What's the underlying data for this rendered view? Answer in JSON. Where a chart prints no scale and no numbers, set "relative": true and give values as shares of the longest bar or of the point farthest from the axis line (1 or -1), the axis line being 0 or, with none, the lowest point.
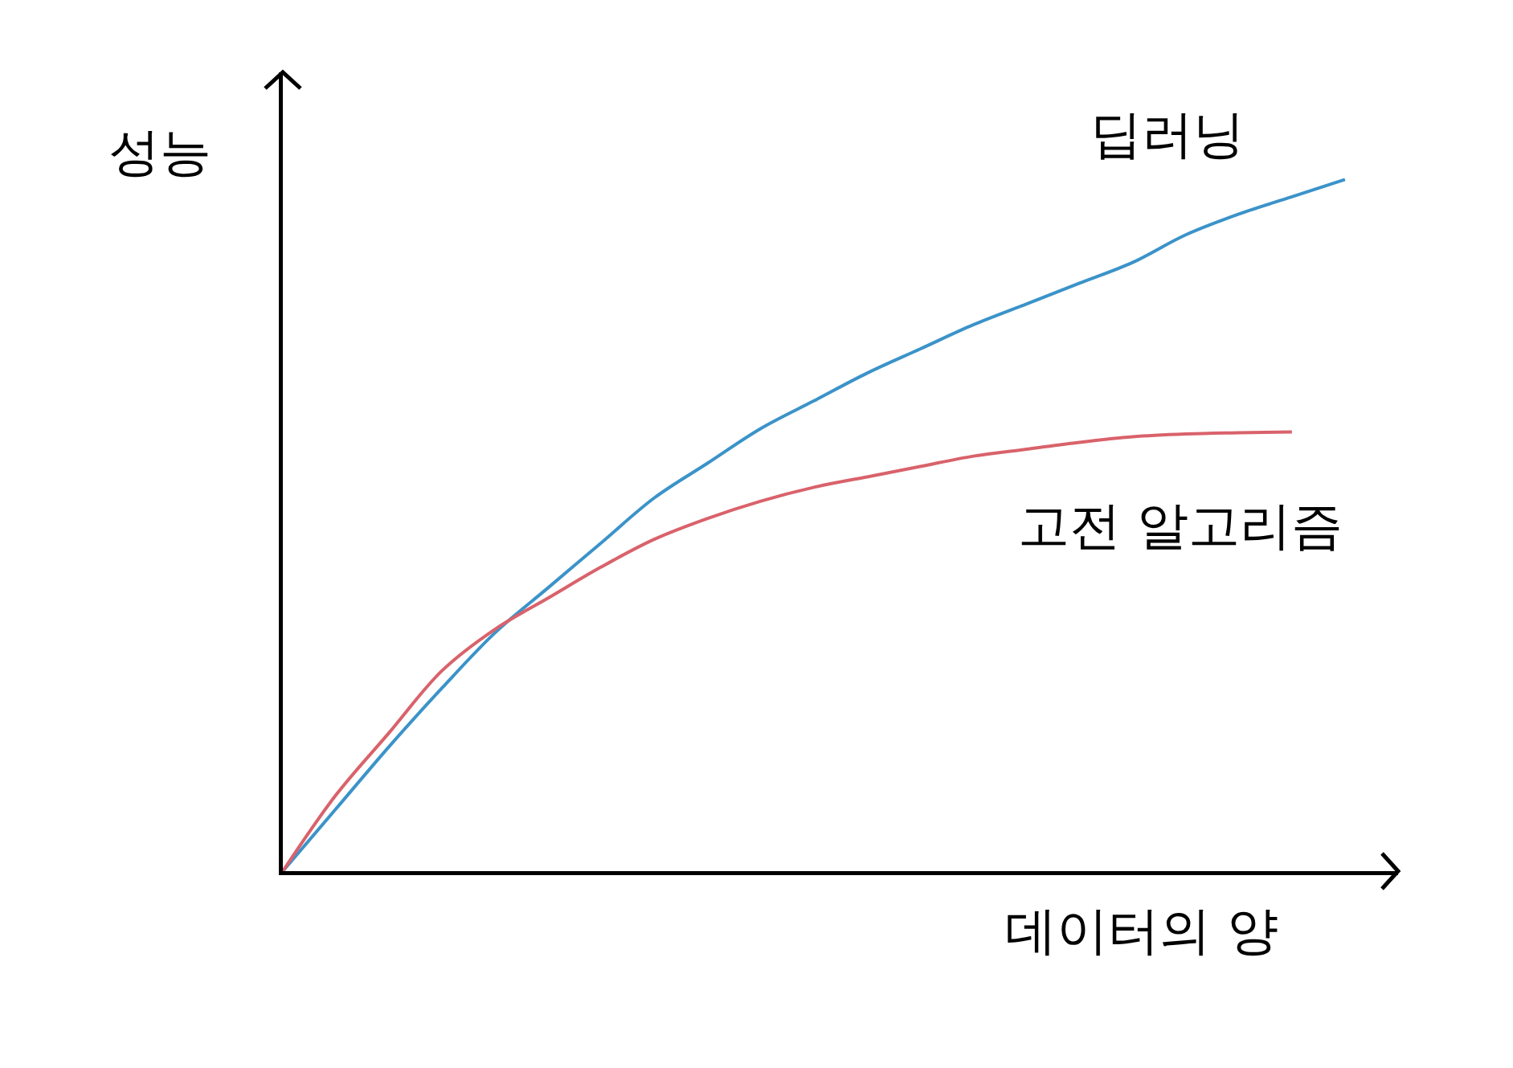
{
  "chart_data": {
    "type": "line",
    "relative": true,
    "xlabel": "데이터의 양",
    "ylabel": "성능",
    "legend": false,
    "marker": "none",
    "line_style": "solid",
    "categories": [
      null,
      null,
      null,
      null,
      null,
      null,
      null,
      null,
      null,
      null,
      null,
      null,
      null,
      null,
      null,
      null,
      null,
      null,
      null,
      null,
      null
    ],
    "series": [
      {
        "name": "딥러닝",
        "color": "#3b93c9",
        "values": [
          0,
          0.09,
          0.18,
          0.265,
          0.345,
          0.41,
          0.475,
          0.54,
          0.59,
          0.64,
          0.68,
          0.72,
          0.755,
          0.79,
          0.82,
          0.85,
          0.88,
          0.92,
          0.95,
          0.975,
          1
        ]
      },
      {
        "name": "고전 알고리즘",
        "color": "#d9626b",
        "values": [
          0,
          0.11,
          0.2,
          0.29,
          0.35,
          0.395,
          0.44,
          0.48,
          0.51,
          0.535,
          0.555,
          0.57,
          0.585,
          0.6,
          0.61,
          0.62,
          0.628,
          0.632,
          0.634,
          0.635,
          null
        ]
      }
    ]
  }
}
